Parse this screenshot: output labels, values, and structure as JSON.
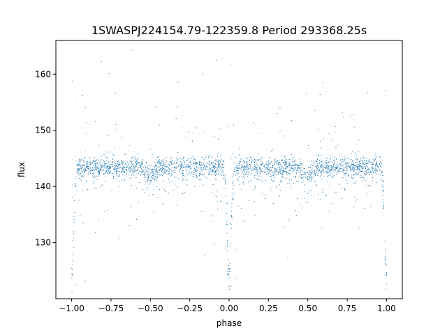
{
  "chart_data": {
    "type": "scatter",
    "title": "1SWASPJ224154.79-122359.8 Period 293368.25s",
    "xlabel": "phase",
    "ylabel": "flux",
    "xlim": [
      -1.1,
      1.1
    ],
    "ylim": [
      120.0,
      166.0
    ],
    "xticks": [
      -1.0,
      -0.75,
      -0.5,
      -0.25,
      0.0,
      0.25,
      0.5,
      0.75,
      1.0
    ],
    "xtick_labels": [
      "−1.00",
      "−0.75",
      "−0.50",
      "−0.25",
      "0.00",
      "0.25",
      "0.50",
      "0.75",
      "1.00"
    ],
    "yticks": [
      130,
      140,
      150,
      160
    ],
    "ytick_labels": [
      "130",
      "140",
      "150",
      "160"
    ],
    "grid": false,
    "marker_color": "#1f77b4",
    "baseline_flux": 143.5,
    "primary_eclipse": {
      "phase": 0.0,
      "min_flux": 124.0
    },
    "secondary_eclipse": {
      "phase": 0.5,
      "min_flux": 142.0
    },
    "phase_gaps": [
      -0.8,
      -0.03,
      0.22,
      0.95
    ]
  }
}
